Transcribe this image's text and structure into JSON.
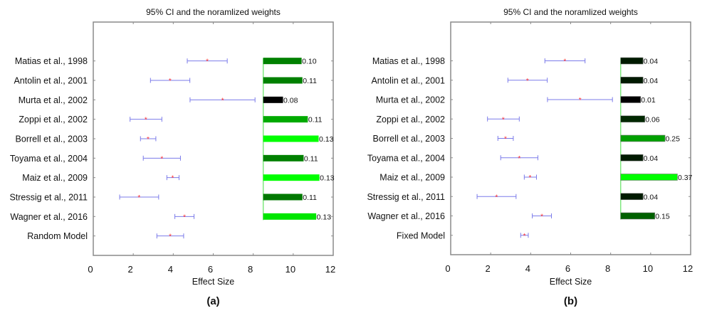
{
  "chart_data": [
    {
      "type": "forest",
      "panel_label": "(a)",
      "title": "95% CI and the noramlized weights",
      "xlabel": "Effect Size",
      "xlim": [
        0,
        12
      ],
      "xticks": [
        0,
        2,
        4,
        6,
        8,
        10,
        12
      ],
      "weight_bar_start": 8.5,
      "colors": {
        "ci": "#7b7bea",
        "point": "#ff3030",
        "baseline": "#7fe87f"
      },
      "studies": [
        {
          "label": "Matias et al., 1998",
          "lower": 4.7,
          "estimate": 5.7,
          "upper": 6.7,
          "weight": "0.10",
          "bar_end": 10.42,
          "bar_color": "#008000"
        },
        {
          "label": "Antolin et al., 2001",
          "lower": 2.86,
          "estimate": 3.84,
          "upper": 4.83,
          "weight": "0.11",
          "bar_end": 10.46,
          "bar_color": "#008000"
        },
        {
          "label": "Murta et al., 2002",
          "lower": 4.84,
          "estimate": 6.47,
          "upper": 8.09,
          "weight": "0.08",
          "bar_end": 9.49,
          "bar_color": "#000000"
        },
        {
          "label": "Zoppi et al., 2002",
          "lower": 1.84,
          "estimate": 2.63,
          "upper": 3.43,
          "weight": "0.11",
          "bar_end": 10.73,
          "bar_color": "#00aa00"
        },
        {
          "label": "Borrell et al., 2003",
          "lower": 2.36,
          "estimate": 2.74,
          "upper": 3.13,
          "weight": "0.13",
          "bar_end": 11.27,
          "bar_color": "#00ff00"
        },
        {
          "label": "Toyama et al., 2004",
          "lower": 2.5,
          "estimate": 3.43,
          "upper": 4.36,
          "weight": "0.11",
          "bar_end": 10.52,
          "bar_color": "#008000"
        },
        {
          "label": "Maiz et al., 2009",
          "lower": 3.68,
          "estimate": 3.97,
          "upper": 4.29,
          "weight": "0.13",
          "bar_end": 11.31,
          "bar_color": "#00ff00"
        },
        {
          "label": "Stressig et al., 2011",
          "lower": 1.32,
          "estimate": 2.29,
          "upper": 3.27,
          "weight": "0.11",
          "bar_end": 10.46,
          "bar_color": "#007800"
        },
        {
          "label": "Wagner et al., 2016",
          "lower": 4.08,
          "estimate": 4.56,
          "upper": 5.04,
          "weight": "0.13",
          "bar_end": 11.15,
          "bar_color": "#00e600"
        },
        {
          "label": "Random Model",
          "lower": 3.18,
          "estimate": 3.85,
          "upper": 4.52,
          "weight": null,
          "bar_end": null,
          "bar_color": null
        }
      ]
    },
    {
      "type": "forest",
      "panel_label": "(b)",
      "title": "95% CI and the noramlized weights",
      "xlabel": "Effect Size",
      "xlim": [
        0,
        12
      ],
      "xticks": [
        0,
        2,
        4,
        6,
        8,
        10,
        12
      ],
      "weight_bar_start": 8.5,
      "colors": {
        "ci": "#7b7bea",
        "point": "#ff3030",
        "baseline": "#7fe87f"
      },
      "studies": [
        {
          "label": "Matias et al., 1998",
          "lower": 4.71,
          "estimate": 5.71,
          "upper": 6.72,
          "weight": "0.04",
          "bar_end": 9.62,
          "bar_color": "#001a00"
        },
        {
          "label": "Antolin et al., 2001",
          "lower": 2.86,
          "estimate": 3.84,
          "upper": 4.83,
          "weight": "0.04",
          "bar_end": 9.62,
          "bar_color": "#001a00"
        },
        {
          "label": "Murta et al., 2002",
          "lower": 4.84,
          "estimate": 6.47,
          "upper": 8.09,
          "weight": "0.01",
          "bar_end": 9.5,
          "bar_color": "#000000"
        },
        {
          "label": "Zoppi et al., 2002",
          "lower": 1.84,
          "estimate": 2.63,
          "upper": 3.43,
          "weight": "0.06",
          "bar_end": 9.71,
          "bar_color": "#002800"
        },
        {
          "label": "Borrell et al., 2003",
          "lower": 2.36,
          "estimate": 2.74,
          "upper": 3.13,
          "weight": "0.25",
          "bar_end": 10.72,
          "bar_color": "#00a000"
        },
        {
          "label": "Toyama et al., 2004",
          "lower": 2.5,
          "estimate": 3.43,
          "upper": 4.36,
          "weight": "0.04",
          "bar_end": 9.62,
          "bar_color": "#001a00"
        },
        {
          "label": "Maiz et al., 2009",
          "lower": 3.68,
          "estimate": 3.97,
          "upper": 4.29,
          "weight": "0.37",
          "bar_end": 11.34,
          "bar_color": "#00ff00"
        },
        {
          "label": "Stressig et al., 2011",
          "lower": 1.32,
          "estimate": 2.29,
          "upper": 3.27,
          "weight": "0.04",
          "bar_end": 9.62,
          "bar_color": "#001a00"
        },
        {
          "label": "Wagner et al., 2016",
          "lower": 4.08,
          "estimate": 4.56,
          "upper": 5.04,
          "weight": "0.15",
          "bar_end": 10.21,
          "bar_color": "#006000"
        },
        {
          "label": "Fixed Model",
          "lower": 3.5,
          "estimate": 3.69,
          "upper": 3.88,
          "weight": null,
          "bar_end": null,
          "bar_color": null
        }
      ]
    }
  ]
}
